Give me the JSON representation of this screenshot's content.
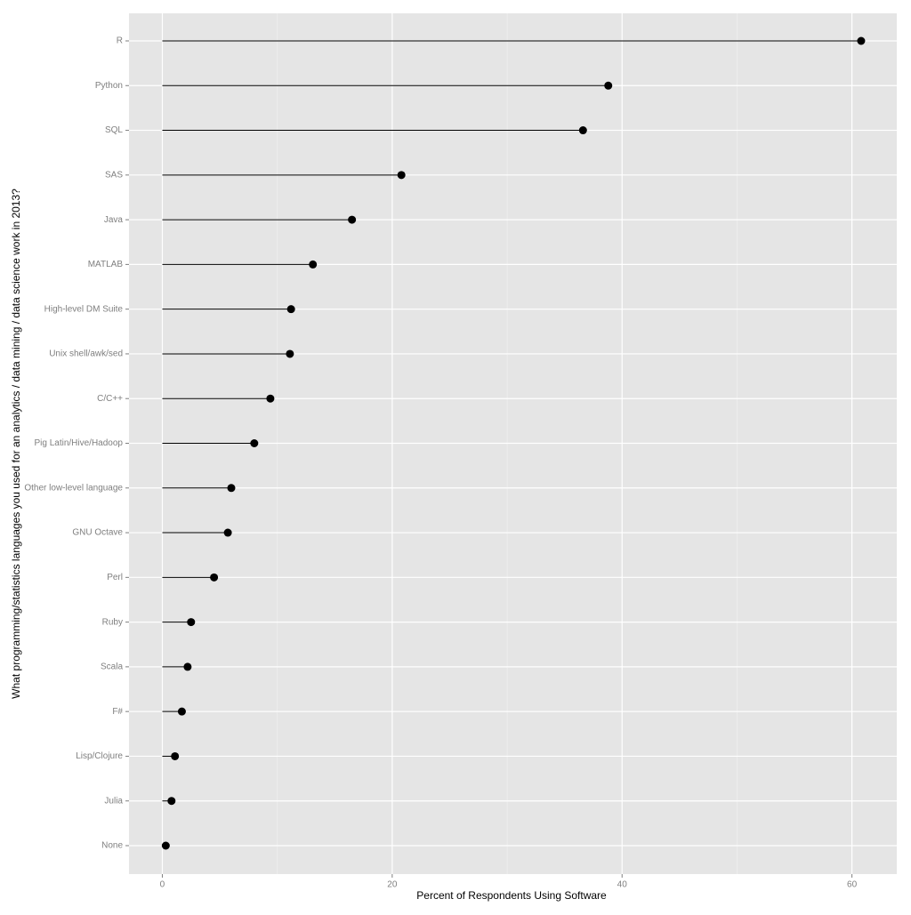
{
  "chart_data": {
    "type": "lollipop",
    "x_label": "Percent of Respondents Using Software",
    "y_label": "What programming/statistics languages you used for an analytics / data mining / data science work in 2013?",
    "categories": [
      "R",
      "Python",
      "SQL",
      "SAS",
      "Java",
      "MATLAB",
      "High-level DM Suite",
      "Unix shell/awk/sed",
      "C/C++",
      "Pig Latin/Hive/Hadoop",
      "Other low-level language",
      "GNU Octave",
      "Perl",
      "Ruby",
      "Scala",
      "F#",
      "Lisp/Clojure",
      "Julia",
      "None"
    ],
    "values": [
      60.8,
      38.8,
      36.6,
      20.8,
      16.5,
      13.1,
      11.2,
      11.1,
      9.4,
      8.0,
      6.0,
      5.7,
      4.5,
      2.5,
      2.2,
      1.7,
      1.1,
      0.8,
      0.3
    ],
    "color": "#000000",
    "xlim": [
      -2.9,
      63.9
    ],
    "xticks": [
      0,
      20,
      40,
      60
    ],
    "minor_xticks": [
      10,
      30,
      50
    ],
    "grid": true
  }
}
